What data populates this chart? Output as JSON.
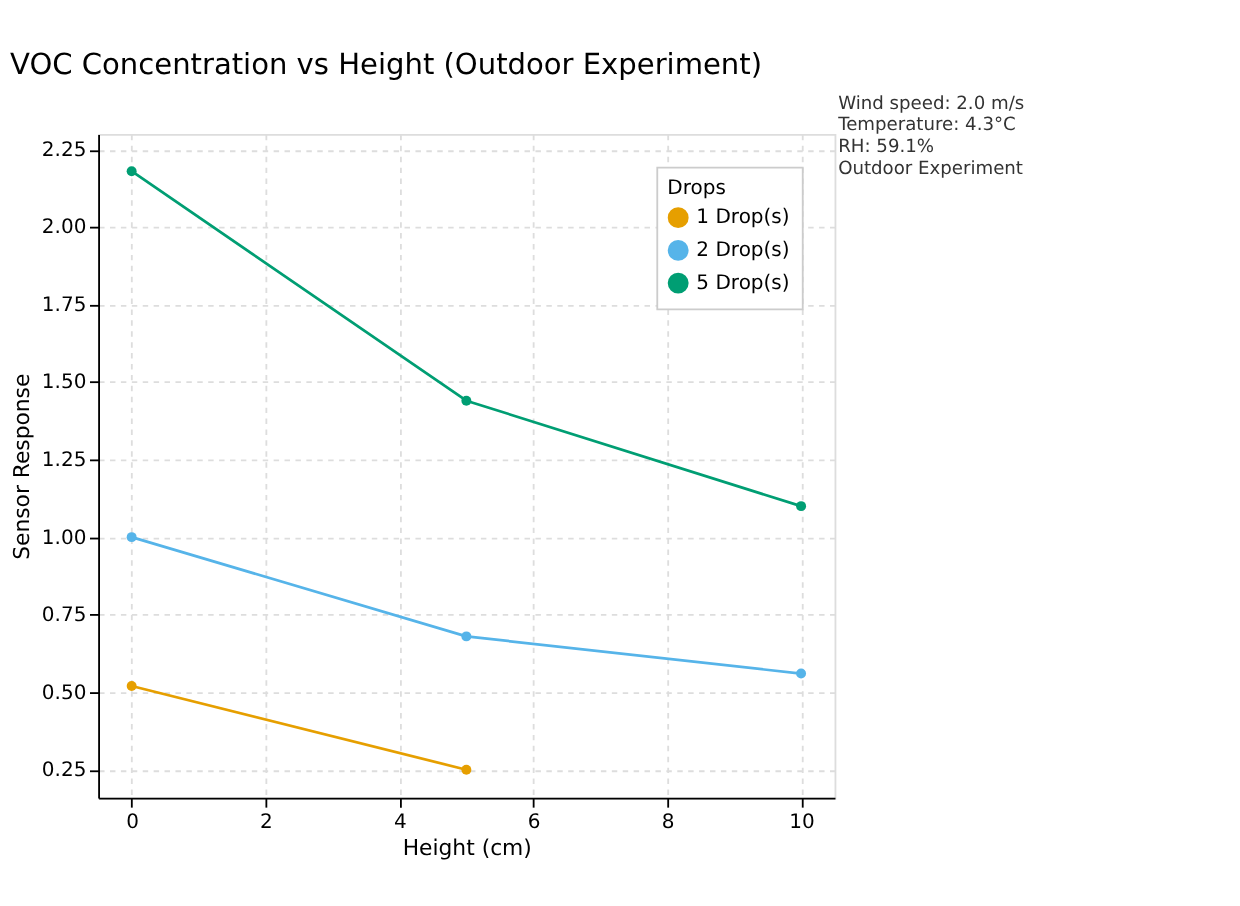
{
  "chart_data": {
    "type": "line",
    "title": "VOC Concentration vs Height (Outdoor Experiment)",
    "xlabel": "Height (cm)",
    "ylabel": "Sensor Response",
    "legend_title": "Drops",
    "xlim": [
      -0.5,
      10.5
    ],
    "xticks": [
      0,
      2,
      4,
      6,
      8,
      10
    ],
    "ylim": [
      0.16,
      2.3
    ],
    "yticks": [
      0.25,
      {
        "value": 0.5,
        "label": "0.50"
      },
      0.75,
      {
        "value": 1,
        "label": "1.00"
      },
      1.25,
      {
        "value": 1.5,
        "label": "1.50"
      },
      1.75,
      {
        "value": 2,
        "label": "2.00"
      },
      2.25
    ],
    "grid": true,
    "legend": "top right",
    "marker": "circle",
    "line_style": "solid",
    "annotations": [
      "Wind speed: 2.0 m/s\nTemperature: 4.3°C\nRH: 59.1%\n\nOutdoor Experiment"
    ],
    "series": [
      {
        "name": "1 Drop(s)",
        "color": "#e69f00",
        "x": [
          0,
          5
        ],
        "values": [
          0.52,
          0.25
        ]
      },
      {
        "name": "2 Drop(s)",
        "color": "#56b4e9",
        "x": [
          0,
          5,
          10
        ],
        "values": [
          1.0,
          0.68,
          0.56
        ]
      },
      {
        "name": "5 Drop(s)",
        "color": "#009e73",
        "x": [
          0,
          5,
          10
        ],
        "values": [
          2.18,
          1.44,
          1.1
        ]
      }
    ]
  }
}
